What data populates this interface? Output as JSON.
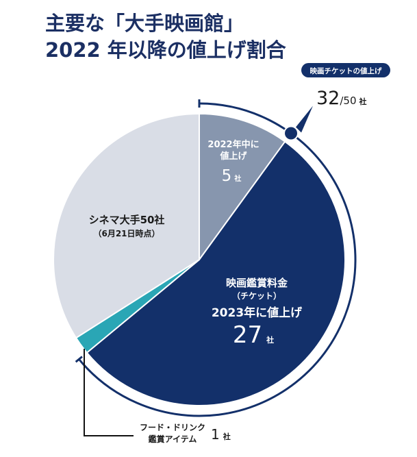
{
  "title_lines": [
    "主要な「大手映画館」",
    "2022 年以降の値上げ割合"
  ],
  "chart_data": {
    "type": "pie",
    "title": "主要な「大手映画館」2022 年以降の値上げ割合",
    "total": 50,
    "unit": "社",
    "slices": [
      {
        "key": "2022",
        "label": "2022年中に値上げ",
        "value": 5,
        "color": "#8796ae"
      },
      {
        "key": "2023",
        "label": "映画鑑賞料金（チケット）2023年に値上げ",
        "value": 27,
        "color": "#13306a"
      },
      {
        "key": "food",
        "label": "フード・ドリンク鑑賞アイテム",
        "value": 1,
        "color": "#2aa6b5"
      },
      {
        "key": "rest",
        "label": "シネマ大手50社（6月21日時点）",
        "value": 17,
        "color": "#d9dde6"
      }
    ],
    "callout": {
      "badge": "映画チケットの値上げ",
      "value": 32,
      "total": 50,
      "total_text": "/50",
      "unit": "社"
    }
  },
  "labels": {
    "s2022": {
      "line1": "2022年中に",
      "line2": "値上げ",
      "value": "5",
      "unit": "社"
    },
    "s2023": {
      "line1": "映画鑑賞料金",
      "line2": "（チケット）",
      "line3": "2023年に値上げ",
      "value": "27",
      "unit": "社"
    },
    "rest": {
      "line1": "シネマ大手50社",
      "line2": "（6月21日時点）"
    },
    "food": {
      "line1": "フード・ドリンク",
      "line2": "鑑賞アイテム",
      "value": "1",
      "unit": "社"
    }
  },
  "colors": {
    "title": "#1b2f63",
    "ring": "#13306a",
    "leader": "#111111"
  }
}
